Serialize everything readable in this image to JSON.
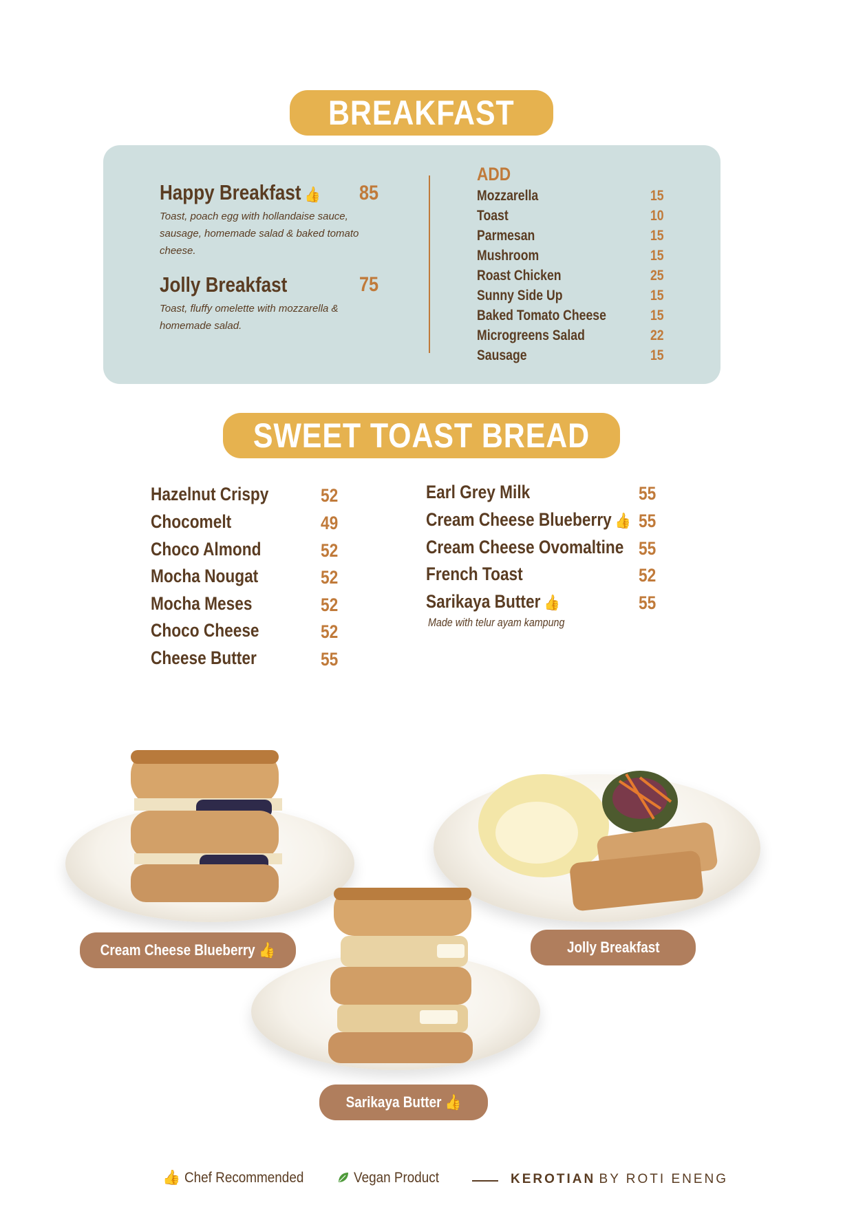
{
  "breakfast": {
    "title": "BREAKFAST",
    "items": [
      {
        "name": "Happy Breakfast",
        "price": "85",
        "description": "Toast, poach egg with hollandaise sauce, sausage, homemade salad & baked tomato cheese.",
        "recommended": true
      },
      {
        "name": "Jolly Breakfast",
        "price": "75",
        "description": "Toast, fluffy omelette with mozzarella & homemade salad.",
        "recommended": false
      }
    ],
    "add": {
      "title": "ADD",
      "items": [
        {
          "name": "Mozzarella",
          "price": "15"
        },
        {
          "name": "Toast",
          "price": "10"
        },
        {
          "name": "Parmesan",
          "price": "15"
        },
        {
          "name": "Mushroom",
          "price": "15"
        },
        {
          "name": "Roast Chicken",
          "price": "25"
        },
        {
          "name": "Sunny Side Up",
          "price": "15"
        },
        {
          "name": "Baked Tomato Cheese",
          "price": "15"
        },
        {
          "name": "Microgreens Salad",
          "price": "22"
        },
        {
          "name": "Sausage",
          "price": "15"
        }
      ]
    }
  },
  "sweet_toast": {
    "title": "SWEET TOAST BREAD",
    "left": [
      {
        "name": "Hazelnut Crispy",
        "price": "52"
      },
      {
        "name": "Chocomelt",
        "price": "49"
      },
      {
        "name": "Choco Almond",
        "price": "52"
      },
      {
        "name": "Mocha Nougat",
        "price": "52"
      },
      {
        "name": "Mocha Meses",
        "price": "52"
      },
      {
        "name": "Choco Cheese",
        "price": "52"
      },
      {
        "name": "Cheese Butter",
        "price": "55"
      }
    ],
    "right": [
      {
        "name": "Earl Grey Milk",
        "price": "55",
        "recommended": false
      },
      {
        "name": "Cream Cheese Blueberry",
        "price": "55",
        "recommended": true
      },
      {
        "name": "Cream Cheese Ovomaltine",
        "price": "55",
        "recommended": false
      },
      {
        "name": "French Toast",
        "price": "52",
        "recommended": false
      },
      {
        "name": "Sarikaya Butter",
        "price": "55",
        "recommended": true
      }
    ],
    "note": "Made with telur ayam kampung"
  },
  "photos": {
    "blueberry_label": "Cream Cheese Blueberry",
    "jolly_label": "Jolly Breakfast",
    "sarikaya_label": "Sarikaya Butter"
  },
  "footer": {
    "chef_label": "Chef Recommended",
    "vegan_label": "Vegan Product",
    "brand": "KEROTIAN",
    "brand_by": "BY ROTI ENENG"
  },
  "colors": {
    "accent": "#e6b24f",
    "brown": "#5a3c22",
    "price": "#c07a3a",
    "panel": "#cfdfdf",
    "pill": "#b07e5d",
    "vegan": "#4e9a3a"
  },
  "icons": {
    "recommended": "thumbs-up-icon",
    "vegan": "leaf-icon"
  }
}
